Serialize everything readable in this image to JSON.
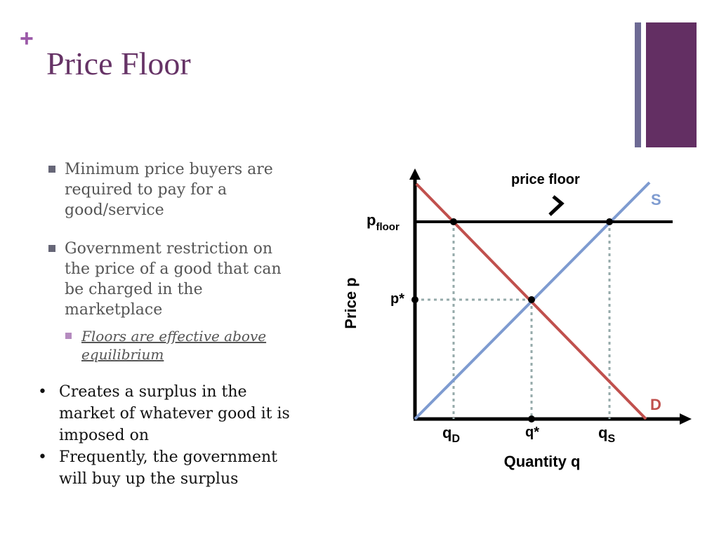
{
  "slide": {
    "plus_sign": "+",
    "title": "Price Floor"
  },
  "colors": {
    "title": "#663366",
    "plus": "#9b59a8",
    "accent_bar": "#632f63",
    "thin_bar": "#6d6a94",
    "square_bullet": "#666677",
    "sub_square_bullet": "#b58bbf",
    "demand": "#c0504d",
    "supply": "#7e9bd0",
    "dashed": "#95aaaa"
  },
  "bullets": [
    {
      "icon": "square-bullet-icon",
      "text": "Minimum price buyers are required to pay for a good/service"
    },
    {
      "icon": "square-bullet-icon",
      "text": "Government restriction on the price of a good that can be charged in the marketplace"
    }
  ],
  "sub_bullets": [
    {
      "icon": "square-bullet-icon",
      "text": "Floors are effective above equilibrium"
    }
  ],
  "round_bullets": [
    {
      "symbol": "•",
      "text": "Creates a surplus in the market of whatever good it is imposed on"
    },
    {
      "symbol": "•",
      "text": "Frequently, the government will buy up the surplus"
    }
  ],
  "diagram": {
    "price_floor_label": "price floor",
    "supply_label": "S",
    "demand_label": "D",
    "p_floor_main": "p",
    "p_floor_sub": "floor",
    "p_star": "p*",
    "price_axis_label": "Price p",
    "quantity_axis_label": "Quantity q",
    "q_d_main": "q",
    "q_d_sub": "D",
    "q_star": "q*",
    "q_s_main": "q",
    "q_s_sub": "S"
  }
}
